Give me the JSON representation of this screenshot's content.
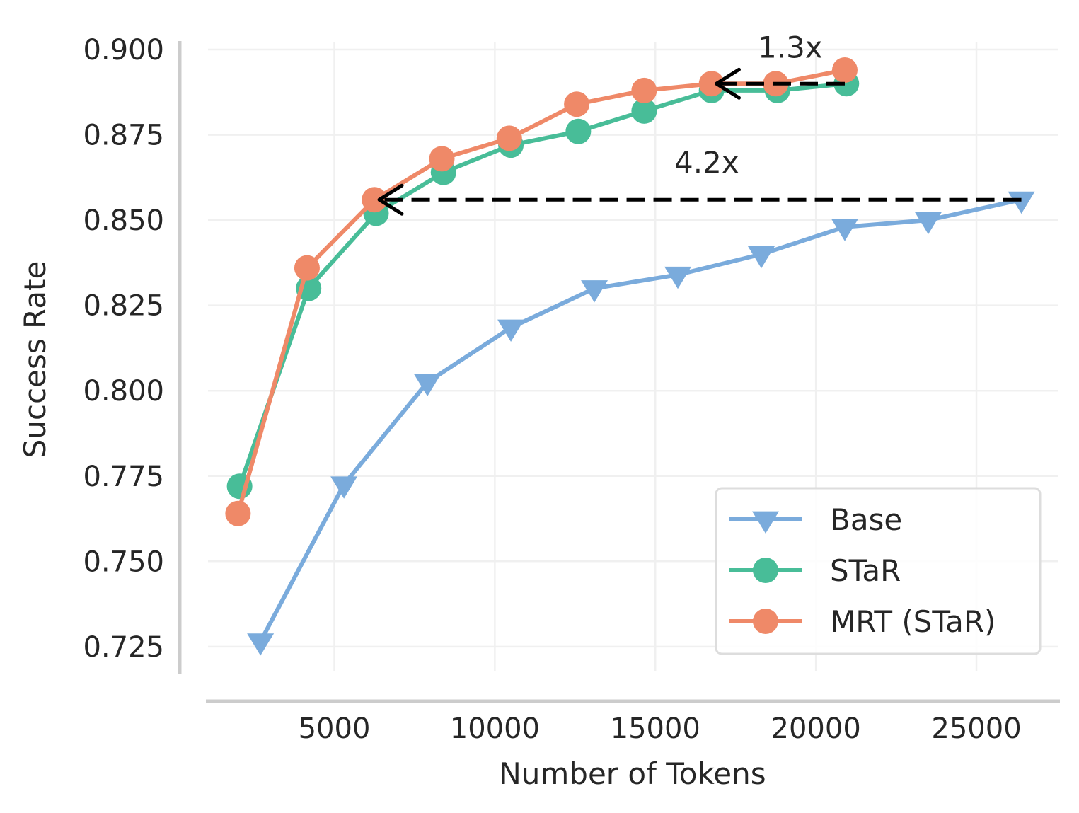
{
  "chart_data": {
    "type": "line",
    "title": "",
    "xlabel": "Number of Tokens",
    "ylabel": "Success Rate",
    "xlim": [
      1000,
      27600
    ],
    "ylim": [
      0.7175,
      0.9025
    ],
    "xticks": [
      5000,
      10000,
      15000,
      20000,
      25000
    ],
    "xtick_labels": [
      "5000",
      "10000",
      "15000",
      "20000",
      "25000"
    ],
    "yticks": [
      0.725,
      0.75,
      0.775,
      0.8,
      0.825,
      0.85,
      0.875,
      0.9
    ],
    "ytick_labels": [
      "0.725",
      "0.750",
      "0.775",
      "0.800",
      "0.825",
      "0.850",
      "0.875",
      "0.900"
    ],
    "grid": true,
    "legend_position": "lower-right",
    "series": [
      {
        "name": "Base",
        "color": "#7aabdc",
        "marker": "triangle-down",
        "x": [
          2700,
          5300,
          7900,
          10500,
          13100,
          15700,
          18300,
          20900,
          23500,
          26400
        ],
        "y": [
          0.7265,
          0.7725,
          0.8025,
          0.8185,
          0.83,
          0.834,
          0.84,
          0.848,
          0.85,
          0.856
        ]
      },
      {
        "name": "STaR",
        "color": "#48bd98",
        "marker": "circle",
        "x": [
          2050,
          4200,
          6300,
          8400,
          10500,
          12600,
          14650,
          16750,
          18800,
          20950
        ],
        "y": [
          0.772,
          0.83,
          0.852,
          0.864,
          0.872,
          0.876,
          0.882,
          0.888,
          0.888,
          0.89
        ]
      },
      {
        "name": "MRT (STaR)",
        "color": "#ef8968",
        "marker": "circle",
        "x": [
          2000,
          4150,
          6250,
          8350,
          10450,
          12550,
          14650,
          16750,
          18750,
          20900
        ],
        "y": [
          0.764,
          0.836,
          0.856,
          0.868,
          0.874,
          0.884,
          0.888,
          0.89,
          0.89,
          0.894
        ]
      }
    ],
    "annotations": [
      {
        "text": "1.3x",
        "x": 19200,
        "y": 0.9005,
        "arrow_from_x": 20900,
        "arrow_to_x": 16900,
        "arrow_y": 0.89
      },
      {
        "text": "4.2x",
        "x": 16600,
        "y": 0.8668,
        "arrow_from_x": 26400,
        "arrow_to_x": 6400,
        "arrow_y": 0.856
      }
    ]
  }
}
